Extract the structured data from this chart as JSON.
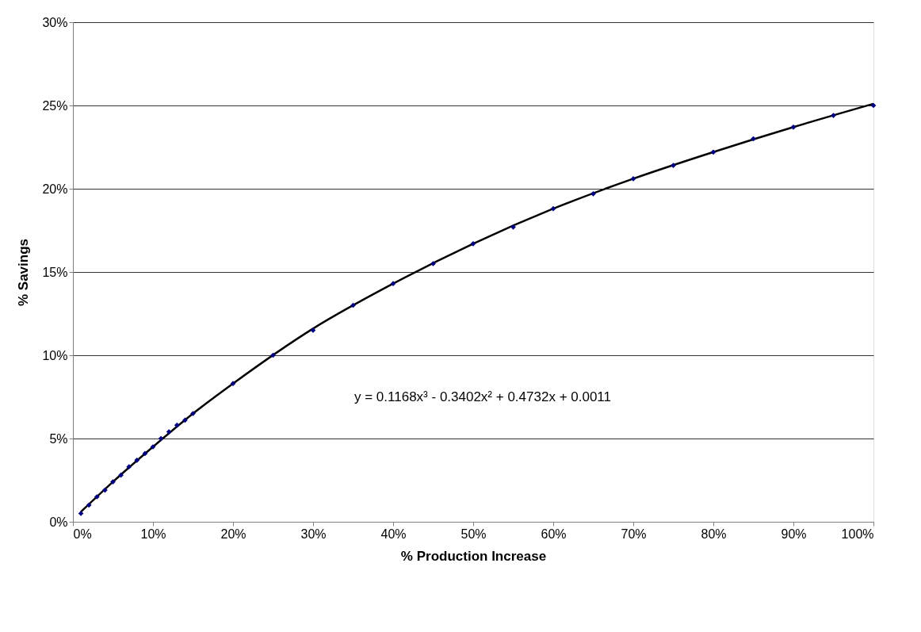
{
  "chart_data": {
    "type": "scatter",
    "xlabel": "% Production Increase",
    "ylabel": "% Savings",
    "xlim": [
      0,
      100
    ],
    "ylim": [
      0,
      30
    ],
    "xticks": [
      {
        "value": 0,
        "label": "0%"
      },
      {
        "value": 10,
        "label": "10%"
      },
      {
        "value": 20,
        "label": "20%"
      },
      {
        "value": 30,
        "label": "30%"
      },
      {
        "value": 40,
        "label": "40%"
      },
      {
        "value": 50,
        "label": "50%"
      },
      {
        "value": 60,
        "label": "60%"
      },
      {
        "value": 70,
        "label": "70%"
      },
      {
        "value": 80,
        "label": "80%"
      },
      {
        "value": 90,
        "label": "90%"
      },
      {
        "value": 100,
        "label": "100%"
      }
    ],
    "yticks": [
      {
        "value": 0,
        "label": "0%"
      },
      {
        "value": 5,
        "label": "5%"
      },
      {
        "value": 10,
        "label": "10%"
      },
      {
        "value": 15,
        "label": "15%"
      },
      {
        "value": 20,
        "label": "20%"
      },
      {
        "value": 25,
        "label": "25%"
      },
      {
        "value": 30,
        "label": "30%"
      }
    ],
    "grid": "y",
    "marker": "diamond",
    "series": [
      {
        "type": "line",
        "color": "#000000",
        "line_style": "solid",
        "marker": "none",
        "x": [
          1,
          5,
          10,
          15,
          20,
          30,
          40,
          50,
          60,
          70,
          80,
          90,
          100
        ],
        "values": [
          0.6,
          2.4,
          4.5,
          6.5,
          8.3,
          11.6,
          14.3,
          16.7,
          18.8,
          20.6,
          22.2,
          23.7,
          25.1
        ]
      },
      {
        "color": "#000080",
        "x": [
          1,
          2,
          3,
          4,
          5,
          6,
          7,
          8,
          9,
          10,
          11,
          12,
          13,
          14,
          15,
          20,
          25,
          30,
          35,
          40,
          45,
          50,
          55,
          60,
          65,
          70,
          75,
          80,
          85,
          90,
          95,
          100
        ],
        "values": [
          0.5,
          1.0,
          1.5,
          1.9,
          2.4,
          2.8,
          3.3,
          3.7,
          4.1,
          4.5,
          5.0,
          5.4,
          5.8,
          6.1,
          6.5,
          8.3,
          10.0,
          11.5,
          13.0,
          14.3,
          15.5,
          16.7,
          17.7,
          18.8,
          19.7,
          20.6,
          21.4,
          22.2,
          23.0,
          23.7,
          24.4,
          25.0
        ]
      }
    ],
    "annotations": [
      "y = 0.1168x³ - 0.3402x² + 0.4732x + 0.0011"
    ]
  }
}
